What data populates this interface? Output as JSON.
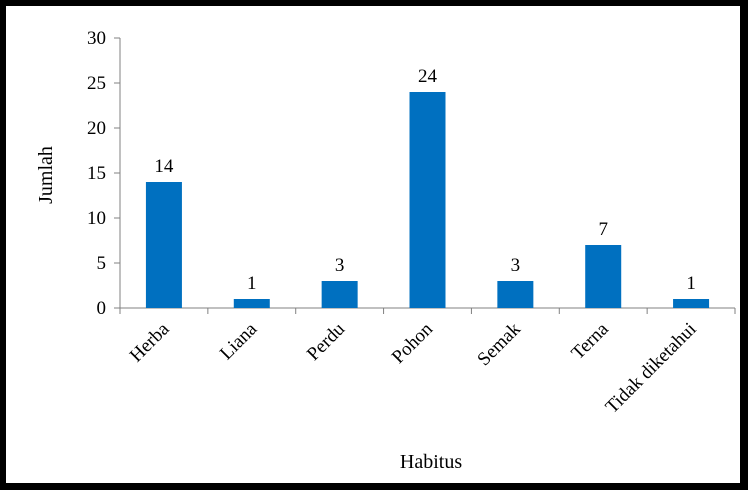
{
  "chart_data": {
    "type": "bar",
    "categories": [
      "Herba",
      "Liana",
      "Perdu",
      "Pohon",
      "Semak",
      "Terna",
      "Tidak diketahui"
    ],
    "values": [
      14,
      1,
      3,
      24,
      3,
      7,
      1
    ],
    "data_labels": [
      "14",
      "1",
      "3",
      "24",
      "3",
      "7",
      "1"
    ],
    "title": "",
    "xlabel": "Habitus",
    "ylabel": "Jumlah",
    "ylim": [
      0,
      30
    ],
    "yticks": [
      0,
      5,
      10,
      15,
      20,
      25,
      30
    ],
    "grid": false,
    "bar_color": "#0070C0"
  }
}
